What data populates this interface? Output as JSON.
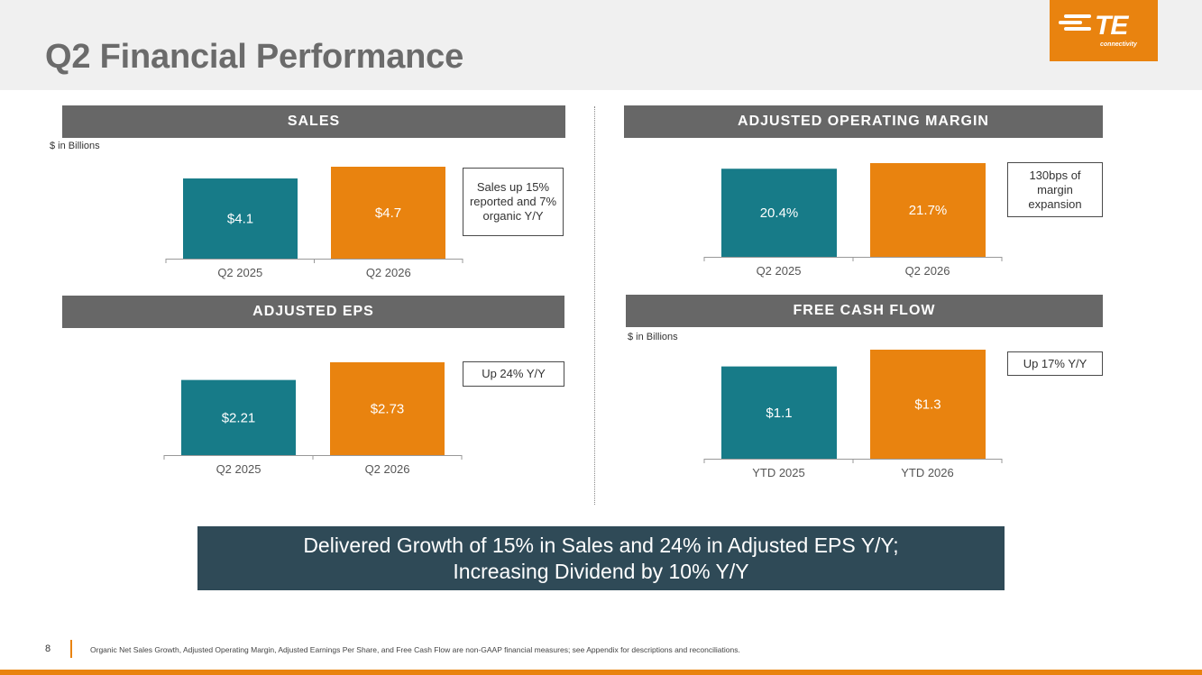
{
  "title": "Q2 Financial Performance",
  "logo": {
    "brand": "TE",
    "sub": "connectivity"
  },
  "colors": {
    "teal": "#177b88",
    "orange": "#e9830f",
    "header_gray": "#676767",
    "banner": "#2f4a57"
  },
  "sections": {
    "sales": {
      "header": "SALES",
      "note": "$ in Billions",
      "callout": "Sales up 15% reported and 7% organic Y/Y"
    },
    "margin": {
      "header": "ADJUSTED OPERATING MARGIN",
      "callout": "130bps of margin expansion"
    },
    "eps": {
      "header": "ADJUSTED EPS",
      "callout": "Up 24% Y/Y"
    },
    "fcf": {
      "header": "FREE CASH FLOW",
      "note": "$ in Billions",
      "callout": "Up 17% Y/Y"
    }
  },
  "chart_data": [
    {
      "id": "sales",
      "type": "bar",
      "title": "SALES",
      "ylabel": "$ in Billions",
      "categories": [
        "Q2 2025",
        "Q2 2026"
      ],
      "values": [
        4.1,
        4.7
      ],
      "labels": [
        "$4.1",
        "$4.7"
      ]
    },
    {
      "id": "margin",
      "type": "bar",
      "title": "ADJUSTED OPERATING MARGIN",
      "categories": [
        "Q2 2025",
        "Q2 2026"
      ],
      "values": [
        20.4,
        21.7
      ],
      "labels": [
        "20.4%",
        "21.7%"
      ]
    },
    {
      "id": "eps",
      "type": "bar",
      "title": "ADJUSTED EPS",
      "categories": [
        "Q2 2025",
        "Q2 2026"
      ],
      "values": [
        2.21,
        2.73
      ],
      "labels": [
        "$2.21",
        "$2.73"
      ]
    },
    {
      "id": "fcf",
      "type": "bar",
      "title": "FREE CASH FLOW",
      "ylabel": "$ in Billions",
      "categories": [
        "YTD 2025",
        "YTD 2026"
      ],
      "values": [
        1.1,
        1.3
      ],
      "labels": [
        "$1.1",
        "$1.3"
      ]
    }
  ],
  "banner": {
    "line1": "Delivered Growth of 15% in Sales and 24% in Adjusted EPS Y/Y;",
    "line2": "Increasing Dividend by 10% Y/Y"
  },
  "footer": {
    "page": "8",
    "note": "Organic Net Sales Growth, Adjusted Operating Margin, Adjusted Earnings Per Share, and Free Cash Flow are non-GAAP financial measures; see Appendix for descriptions and reconciliations."
  }
}
